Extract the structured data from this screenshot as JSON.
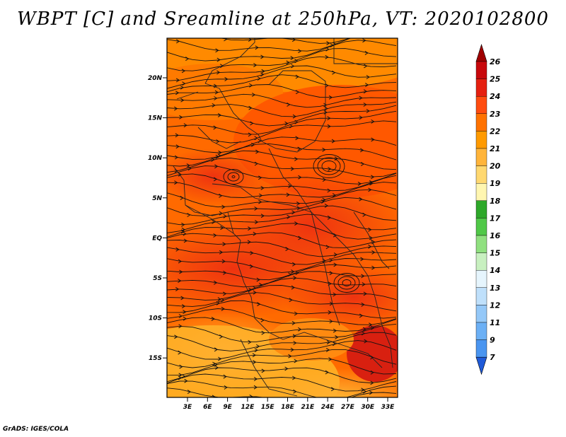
{
  "title": "WBPT [C] and Sreamline at 250hPa, VT: 2020102800",
  "credit": "GrADS: IGES/COLA",
  "map": {
    "lat_ticks": [
      "20N",
      "15N",
      "10N",
      "5N",
      "EQ",
      "5S",
      "10S",
      "15S"
    ],
    "lon_ticks": [
      "3E",
      "6E",
      "9E",
      "12E",
      "15E",
      "18E",
      "21E",
      "24E",
      "27E",
      "30E",
      "33E"
    ],
    "lat_range": [
      -19,
      24
    ],
    "lon_range": [
      0,
      35
    ],
    "fill_palette": [
      "#ff7700",
      "#ff5500",
      "#f03010",
      "#ffa500",
      "#ffc040"
    ]
  },
  "colorbar": {
    "labels": [
      "7",
      "9",
      "11",
      "12",
      "13",
      "14",
      "15",
      "16",
      "17",
      "18",
      "19",
      "20",
      "21",
      "22",
      "23",
      "24",
      "25",
      "26"
    ],
    "colors": [
      "#1f5ad8",
      "#2f78e8",
      "#4a95f0",
      "#6cb0f5",
      "#94c8f8",
      "#bfe0fb",
      "#e6f5fd",
      "#c8f0c0",
      "#90e080",
      "#50c848",
      "#2ea82a",
      "#fff6b0",
      "#ffd870",
      "#ffb43a",
      "#ff9a00",
      "#ff7200",
      "#ff4c10",
      "#e52010",
      "#c8080c",
      "#a00000"
    ]
  }
}
